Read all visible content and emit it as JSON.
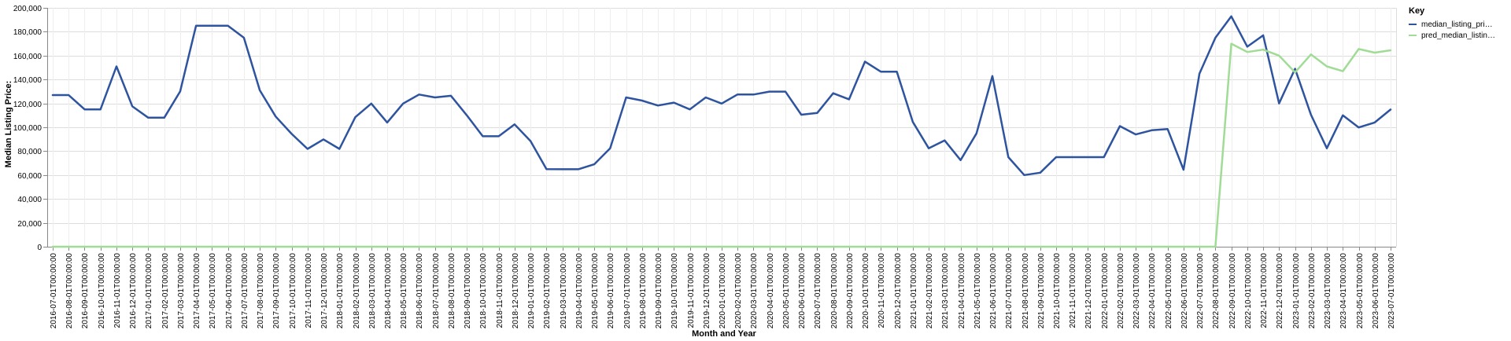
{
  "chart_data": {
    "type": "line",
    "title": "",
    "xlabel": "Month and Year",
    "ylabel": "Median Listing Price:",
    "ylim": [
      0,
      200000
    ],
    "yticks": [
      "0",
      "20,000",
      "40,000",
      "60,000",
      "80,000",
      "100,000",
      "120,000",
      "140,000",
      "160,000",
      "180,000",
      "200,000"
    ],
    "grid": true,
    "legend_position": "top-right",
    "legend_title": "Key",
    "x": [
      "2016-07-01T00:00:00",
      "2016-08-01T00:00:00",
      "2016-09-01T00:00:00",
      "2016-10-01T00:00:00",
      "2016-11-01T00:00:00",
      "2016-12-01T00:00:00",
      "2017-01-01T00:00:00",
      "2017-02-01T00:00:00",
      "2017-03-01T00:00:00",
      "2017-04-01T00:00:00",
      "2017-05-01T00:00:00",
      "2017-06-01T00:00:00",
      "2017-07-01T00:00:00",
      "2017-08-01T00:00:00",
      "2017-09-01T00:00:00",
      "2017-10-01T00:00:00",
      "2017-11-01T00:00:00",
      "2017-12-01T00:00:00",
      "2018-01-01T00:00:00",
      "2018-02-01T00:00:00",
      "2018-03-01T00:00:00",
      "2018-04-01T00:00:00",
      "2018-05-01T00:00:00",
      "2018-06-01T00:00:00",
      "2018-07-01T00:00:00",
      "2018-08-01T00:00:00",
      "2018-09-01T00:00:00",
      "2018-10-01T00:00:00",
      "2018-11-01T00:00:00",
      "2018-12-01T00:00:00",
      "2019-01-01T00:00:00",
      "2019-02-01T00:00:00",
      "2019-03-01T00:00:00",
      "2019-04-01T00:00:00",
      "2019-05-01T00:00:00",
      "2019-06-01T00:00:00",
      "2019-07-01T00:00:00",
      "2019-08-01T00:00:00",
      "2019-09-01T00:00:00",
      "2019-10-01T00:00:00",
      "2019-11-01T00:00:00",
      "2019-12-01T00:00:00",
      "2020-01-01T00:00:00",
      "2020-02-01T00:00:00",
      "2020-03-01T00:00:00",
      "2020-04-01T00:00:00",
      "2020-05-01T00:00:00",
      "2020-06-01T00:00:00",
      "2020-07-01T00:00:00",
      "2020-08-01T00:00:00",
      "2020-09-01T00:00:00",
      "2020-10-01T00:00:00",
      "2020-11-01T00:00:00",
      "2020-12-01T00:00:00",
      "2021-01-01T00:00:00",
      "2021-02-01T00:00:00",
      "2021-03-01T00:00:00",
      "2021-04-01T00:00:00",
      "2021-05-01T00:00:00",
      "2021-06-01T00:00:00",
      "2021-07-01T00:00:00",
      "2021-08-01T00:00:00",
      "2021-09-01T00:00:00",
      "2021-10-01T00:00:00",
      "2021-11-01T00:00:00",
      "2021-12-01T00:00:00",
      "2022-01-01T00:00:00",
      "2022-02-01T00:00:00",
      "2022-03-01T00:00:00",
      "2022-04-01T00:00:00",
      "2022-05-01T00:00:00",
      "2022-06-01T00:00:00",
      "2022-07-01T00:00:00",
      "2022-08-01T00:00:00",
      "2022-09-01T00:00:00",
      "2022-10-01T00:00:00",
      "2022-11-01T00:00:00",
      "2022-12-01T00:00:00",
      "2023-01-01T00:00:00",
      "2023-02-01T00:00:00",
      "2023-03-01T00:00:00",
      "2023-04-01T00:00:00",
      "2023-05-01T00:00:00",
      "2023-06-01T00:00:00",
      "2023-07-01T00:00:00"
    ],
    "series": [
      {
        "name": "median_listing_pri…",
        "color": "#2e54a0",
        "values": [
          127000,
          127000,
          115000,
          115000,
          151000,
          117500,
          108000,
          108000,
          130000,
          185000,
          185000,
          185000,
          175000,
          131000,
          109000,
          94500,
          81900,
          89900,
          81900,
          108500,
          119900,
          104000,
          119900,
          127450,
          125000,
          126400,
          110000,
          92500,
          92500,
          102450,
          88500,
          65000,
          64900,
          64900,
          69000,
          82450,
          125000,
          122400,
          118200,
          120650,
          115000,
          125000,
          119900,
          127500,
          127450,
          129900,
          129900,
          110500,
          112000,
          128500,
          123450,
          155000,
          146500,
          146500,
          104500,
          82450,
          89000,
          72500,
          94900,
          142900,
          75000,
          60000,
          62000,
          75000,
          75000,
          75000,
          75000,
          101000,
          94000,
          97500,
          98500,
          64500,
          144900,
          175000,
          192900,
          167500,
          177000,
          120000,
          149000,
          110500,
          82450,
          110000,
          99900,
          104000,
          114900
        ]
      },
      {
        "name": "pred_median_listin…",
        "color": "#a0dc96",
        "values": [
          0,
          0,
          0,
          0,
          0,
          0,
          0,
          0,
          0,
          0,
          0,
          0,
          0,
          0,
          0,
          0,
          0,
          0,
          0,
          0,
          0,
          0,
          0,
          0,
          0,
          0,
          0,
          0,
          0,
          0,
          0,
          0,
          0,
          0,
          0,
          0,
          0,
          0,
          0,
          0,
          0,
          0,
          0,
          0,
          0,
          0,
          0,
          0,
          0,
          0,
          0,
          0,
          0,
          0,
          0,
          0,
          0,
          0,
          0,
          0,
          0,
          0,
          0,
          0,
          0,
          0,
          0,
          0,
          0,
          0,
          0,
          0,
          0,
          0,
          170000,
          163000,
          165000,
          160000,
          146000,
          161000,
          151000,
          147000,
          165500,
          162500,
          164500
        ]
      }
    ]
  }
}
